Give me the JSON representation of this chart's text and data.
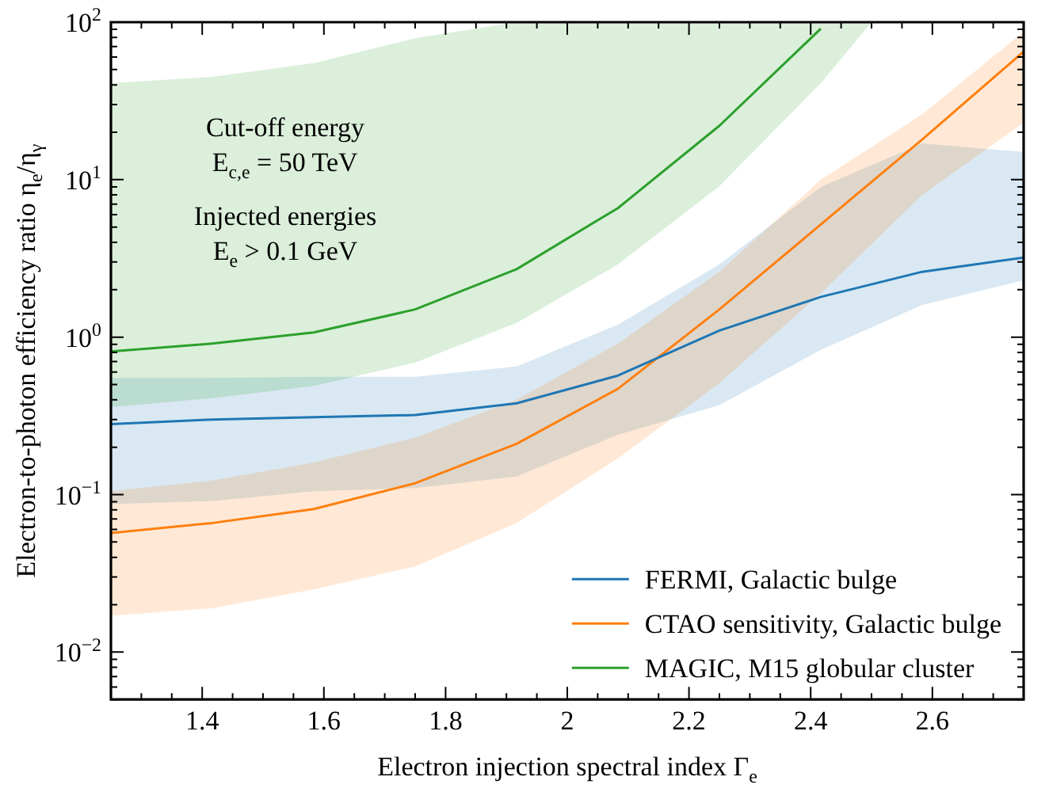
{
  "chart_data": {
    "type": "line",
    "xlabel": "Electron injection spectral index Γ$_{e}$",
    "ylabel": "Electron-to-photon efficiency ratio η$_{e}$/η$_{γ}$",
    "x": [
      1.25,
      1.4167,
      1.5833,
      1.75,
      1.9167,
      2.0833,
      2.25,
      2.4167,
      2.5833,
      2.75
    ],
    "series": [
      {
        "name": "FERMI, Galactic bulge",
        "color": "#1f77b4",
        "values": [
          0.28,
          0.3,
          0.31,
          0.32,
          0.38,
          0.57,
          1.1,
          1.8,
          2.6,
          3.2
        ],
        "lower": [
          0.087,
          0.091,
          0.105,
          0.11,
          0.13,
          0.24,
          0.37,
          0.83,
          1.6,
          2.3
        ],
        "upper": [
          0.55,
          0.55,
          0.56,
          0.56,
          0.65,
          1.2,
          2.9,
          9,
          17,
          15
        ]
      },
      {
        "name": "CTAO sensitivity, Galactic bulge",
        "color": "#ff7f0e",
        "values": [
          0.057,
          0.066,
          0.081,
          0.118,
          0.21,
          0.47,
          1.5,
          5.2,
          18,
          65
        ],
        "lower": [
          0.017,
          0.019,
          0.025,
          0.035,
          0.066,
          0.17,
          0.51,
          1.9,
          8,
          23
        ],
        "upper": [
          0.105,
          0.123,
          0.16,
          0.23,
          0.4,
          0.91,
          2.6,
          10,
          26,
          87
        ]
      },
      {
        "name": "MAGIC, M15 globular cluster",
        "color": "#2ca02c",
        "x": [
          1.25,
          1.4167,
          1.5833,
          1.75,
          1.9167,
          2.0833,
          2.25,
          2.4167,
          2.5
        ],
        "values": [
          0.81,
          0.91,
          1.07,
          1.5,
          2.7,
          6.6,
          22,
          91,
          null
        ],
        "lower": [
          0.36,
          0.41,
          0.49,
          0.69,
          1.23,
          2.9,
          9.1,
          41,
          100
        ],
        "upper": [
          41,
          45,
          55,
          79,
          100,
          100,
          100,
          100,
          100
        ]
      }
    ],
    "xlim": [
      1.25,
      2.75
    ],
    "xticks": [
      {
        "value": 1.3,
        "label": null
      },
      {
        "value": 1.35,
        "label": null
      },
      1.4,
      {
        "value": 1.45,
        "label": null
      },
      {
        "value": 1.5,
        "label": null
      },
      {
        "value": 1.55,
        "label": null
      },
      1.6,
      {
        "value": 1.65,
        "label": null
      },
      {
        "value": 1.7,
        "label": null
      },
      {
        "value": 1.75,
        "label": null
      },
      1.8,
      {
        "value": 1.85,
        "label": null
      },
      {
        "value": 1.9,
        "label": null
      },
      {
        "value": 1.95,
        "label": null
      },
      2.0,
      {
        "value": 2.05,
        "label": null
      },
      {
        "value": 2.1,
        "label": null
      },
      {
        "value": 2.15,
        "label": null
      },
      2.2,
      {
        "value": 2.25,
        "label": null
      },
      {
        "value": 2.3,
        "label": null
      },
      {
        "value": 2.35,
        "label": null
      },
      2.4,
      {
        "value": 2.45,
        "label": null
      },
      {
        "value": 2.5,
        "label": null
      },
      {
        "value": 2.55,
        "label": null
      },
      2.6,
      {
        "value": 2.65,
        "label": null
      },
      {
        "value": 2.7,
        "label": null
      }
    ],
    "ylim": [
      0.005,
      100
    ],
    "yticks": [
      {
        "value": 0.005,
        "label": null
      },
      {
        "value": 0.006,
        "label": null
      },
      {
        "value": 0.007,
        "label": null
      },
      {
        "value": 0.008,
        "label": null
      },
      {
        "value": 0.009,
        "label": null
      },
      {
        "value": 0.01,
        "label": "10$^{−2}$"
      },
      {
        "value": 0.02,
        "label": null
      },
      {
        "value": 0.03,
        "label": null
      },
      {
        "value": 0.04,
        "label": null
      },
      {
        "value": 0.05,
        "label": null
      },
      {
        "value": 0.06,
        "label": null
      },
      {
        "value": 0.07,
        "label": null
      },
      {
        "value": 0.08,
        "label": null
      },
      {
        "value": 0.09,
        "label": null
      },
      {
        "value": 0.1,
        "label": "10$^{−1}$"
      },
      {
        "value": 0.2,
        "label": null
      },
      {
        "value": 0.3,
        "label": null
      },
      {
        "value": 0.4,
        "label": null
      },
      {
        "value": 0.5,
        "label": null
      },
      {
        "value": 0.6,
        "label": null
      },
      {
        "value": 0.7,
        "label": null
      },
      {
        "value": 0.8,
        "label": null
      },
      {
        "value": 0.9,
        "label": null
      },
      {
        "value": 1,
        "label": "10$^{0}$"
      },
      {
        "value": 2,
        "label": null
      },
      {
        "value": 3,
        "label": null
      },
      {
        "value": 4,
        "label": null
      },
      {
        "value": 5,
        "label": null
      },
      {
        "value": 6,
        "label": null
      },
      {
        "value": 7,
        "label": null
      },
      {
        "value": 8,
        "label": null
      },
      {
        "value": 9,
        "label": null
      },
      {
        "value": 10,
        "label": "10$^{1}$"
      },
      {
        "value": 20,
        "label": null
      },
      {
        "value": 30,
        "label": null
      },
      {
        "value": 40,
        "label": null
      },
      {
        "value": 50,
        "label": null
      },
      {
        "value": 60,
        "label": null
      },
      {
        "value": 70,
        "label": null
      },
      {
        "value": 80,
        "label": null
      },
      {
        "value": 90,
        "label": null
      },
      {
        "value": 100,
        "label": "10$^{2}$"
      }
    ],
    "log": true,
    "legend": "bottom right",
    "annotations": [
      "Cut-off energy",
      "E$_{c,e}$ = 50 TeV",
      "Injected energies",
      "E$_{e}$ > 0.1 GeV"
    ]
  }
}
